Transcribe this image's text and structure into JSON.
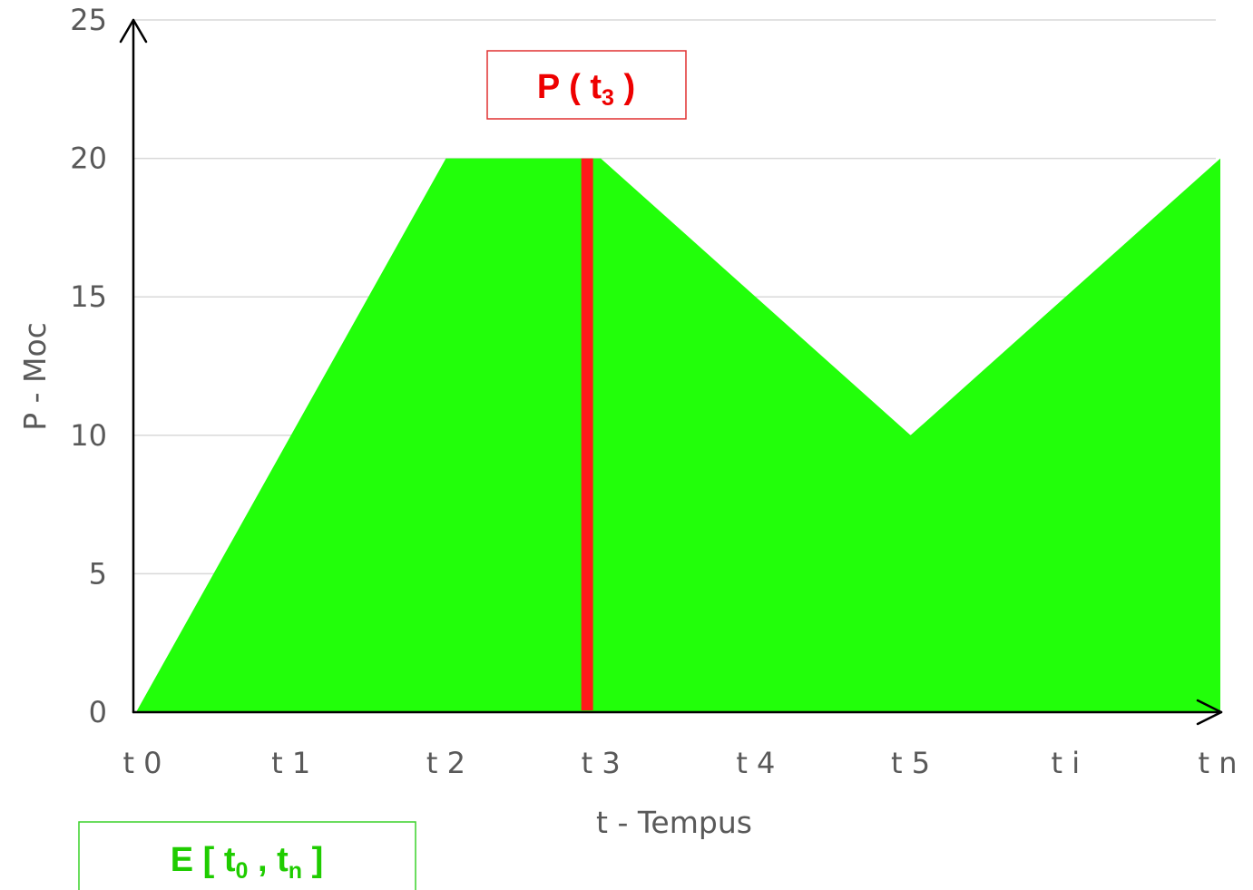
{
  "chart_data": {
    "type": "area",
    "x_categories": [
      "t 0",
      "t 1",
      "t 2",
      "t 3",
      "t 4",
      "t 5",
      "t i",
      "t n"
    ],
    "series": [
      {
        "x": [
          "t 0",
          "t 1",
          "t 2",
          "t 3",
          "t 4",
          "t 5",
          "t i",
          "t n"
        ],
        "values": [
          0,
          10,
          20,
          20,
          15,
          10,
          15,
          20
        ]
      }
    ],
    "xlabel": "t - Tempus",
    "ylabel": "P - Moc",
    "ylim": [
      0,
      25
    ],
    "yticks": [
      "0",
      "5",
      "10",
      "15",
      "20",
      "25"
    ],
    "grid": "horizontal",
    "marker": {
      "x": "t 3",
      "value": 20
    },
    "annotations": {
      "power": {
        "main": "P ( t",
        "sub": "3",
        "end": " )"
      },
      "energy": {
        "main": "E [ t",
        "sub1": "0",
        "mid": " , t",
        "sub2": "n",
        "end": " ]"
      }
    },
    "colors": {
      "area": "#22ff0a",
      "marker": "#ff1a1a",
      "power_text": "#ee0000",
      "energy_text": "#1fcc00",
      "grid": "#d9d9d9",
      "axis": "#000000"
    }
  }
}
